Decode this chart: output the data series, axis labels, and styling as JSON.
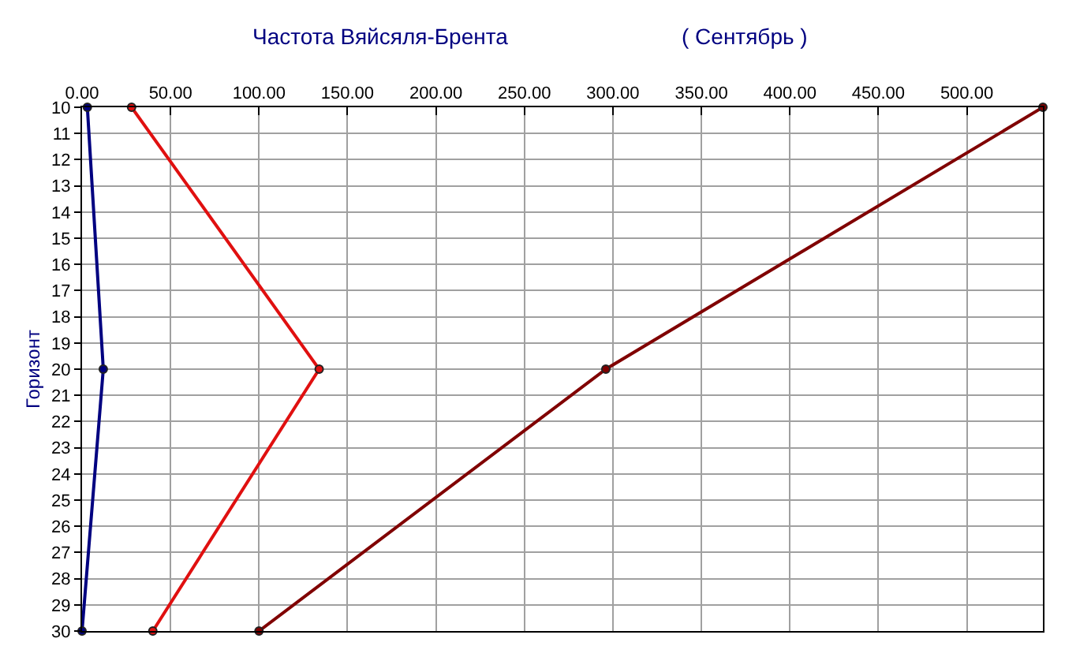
{
  "chart_data": {
    "type": "line",
    "title": "Частота Вяйсяля-Брента",
    "subtitle": "( Сентябрь )",
    "ylabel": "Горизонт",
    "xlim": [
      0,
      543
    ],
    "xticks": [
      {
        "value": 0,
        "label": "0.00"
      },
      {
        "value": 50,
        "label": "50.00"
      },
      {
        "value": 100,
        "label": "100.00"
      },
      {
        "value": 150,
        "label": "150.00"
      },
      {
        "value": 200,
        "label": "200.00"
      },
      {
        "value": 250,
        "label": "250.00"
      },
      {
        "value": 300,
        "label": "300.00"
      },
      {
        "value": 350,
        "label": "350.00"
      },
      {
        "value": 400,
        "label": "400.00"
      },
      {
        "value": 450,
        "label": "450.00"
      },
      {
        "value": 500,
        "label": "500.00"
      }
    ],
    "ylim": [
      30,
      10
    ],
    "yticks": [
      10,
      11,
      12,
      13,
      14,
      15,
      16,
      17,
      18,
      19,
      20,
      21,
      22,
      23,
      24,
      25,
      26,
      27,
      28,
      29,
      30
    ],
    "grid": true,
    "marker": "circle",
    "line_style": "solid",
    "series": [
      {
        "color": "#000080",
        "x": [
          3,
          12,
          0
        ],
        "values": [
          10,
          20,
          30
        ]
      },
      {
        "color": "#e01010",
        "x": [
          28,
          134,
          40
        ],
        "values": [
          10,
          20,
          30
        ]
      },
      {
        "color": "#800000",
        "x": [
          543,
          296,
          100
        ],
        "values": [
          10,
          20,
          30
        ]
      }
    ]
  }
}
